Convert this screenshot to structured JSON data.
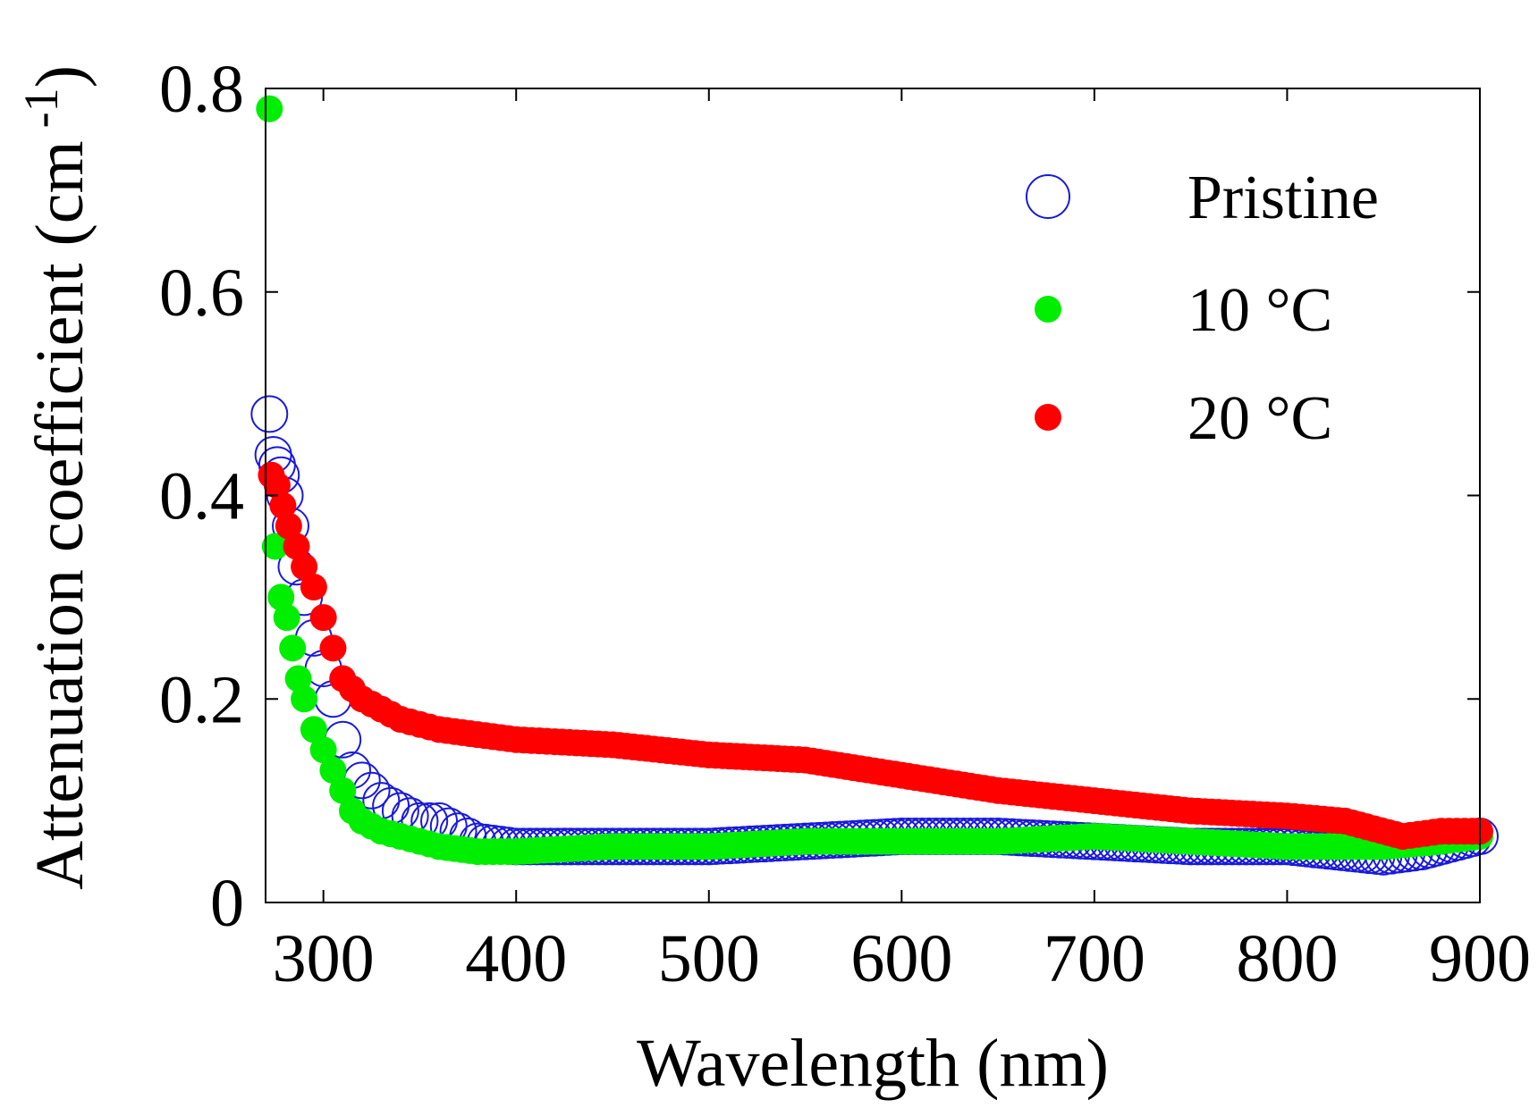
{
  "chart_data": {
    "type": "scatter",
    "title": "",
    "xlabel": "Wavelength (nm)",
    "ylabel": "Attenuation coefficient (cm",
    "ylabel_superscript": "-1",
    "ylabel_close": ")",
    "xlim": [
      270,
      900
    ],
    "ylim": [
      0,
      0.8
    ],
    "xticks": [
      300,
      400,
      500,
      600,
      700,
      800,
      900
    ],
    "yticks": [
      0,
      0.2,
      0.4,
      0.6,
      0.8
    ],
    "xtick_labels": [
      "300",
      "400",
      "500",
      "600",
      "700",
      "800",
      "900"
    ],
    "ytick_labels": [
      "0",
      "0.2",
      "0.4",
      "0.6",
      "0.8"
    ],
    "grid": false,
    "legend_position": "top-right",
    "series": [
      {
        "name": "Pristine",
        "marker": "open-circle",
        "color": "#1a1adc",
        "x": [
          272,
          274,
          276,
          278,
          280,
          283,
          286,
          290,
          295,
          300,
          305,
          310,
          315,
          320,
          330,
          340,
          350,
          360,
          370,
          380,
          400,
          450,
          500,
          550,
          600,
          650,
          700,
          750,
          800,
          850,
          870,
          900
        ],
        "y": [
          0.48,
          0.44,
          0.43,
          0.42,
          0.4,
          0.37,
          0.33,
          0.3,
          0.26,
          0.23,
          0.2,
          0.16,
          0.13,
          0.12,
          0.1,
          0.09,
          0.08,
          0.08,
          0.07,
          0.06,
          0.055,
          0.055,
          0.055,
          0.06,
          0.065,
          0.065,
          0.06,
          0.055,
          0.055,
          0.045,
          0.05,
          0.065
        ]
      },
      {
        "name": "10 °C",
        "marker": "filled-circle",
        "color": "#00ee00",
        "x": [
          272,
          275,
          278,
          281,
          284,
          287,
          290,
          295,
          300,
          305,
          310,
          315,
          320,
          330,
          340,
          350,
          360,
          380,
          400,
          450,
          500,
          550,
          600,
          650,
          700,
          750,
          800,
          850,
          880,
          900
        ],
        "y": [
          0.78,
          0.35,
          0.3,
          0.28,
          0.25,
          0.22,
          0.2,
          0.17,
          0.15,
          0.13,
          0.11,
          0.09,
          0.08,
          0.07,
          0.065,
          0.06,
          0.055,
          0.05,
          0.05,
          0.055,
          0.055,
          0.06,
          0.06,
          0.06,
          0.065,
          0.06,
          0.055,
          0.055,
          0.06,
          0.065
        ]
      },
      {
        "name": "20  °C",
        "marker": "filled-circle",
        "color": "#ff0000",
        "x": [
          273,
          276,
          279,
          282,
          286,
          290,
          295,
          300,
          305,
          310,
          320,
          330,
          340,
          350,
          360,
          380,
          400,
          420,
          450,
          500,
          550,
          600,
          650,
          700,
          750,
          800,
          830,
          860,
          880,
          900
        ],
        "y": [
          0.42,
          0.41,
          0.39,
          0.37,
          0.35,
          0.33,
          0.31,
          0.28,
          0.25,
          0.22,
          0.2,
          0.19,
          0.18,
          0.175,
          0.17,
          0.165,
          0.16,
          0.158,
          0.155,
          0.145,
          0.14,
          0.125,
          0.11,
          0.1,
          0.09,
          0.085,
          0.08,
          0.065,
          0.07,
          0.07
        ]
      }
    ]
  }
}
